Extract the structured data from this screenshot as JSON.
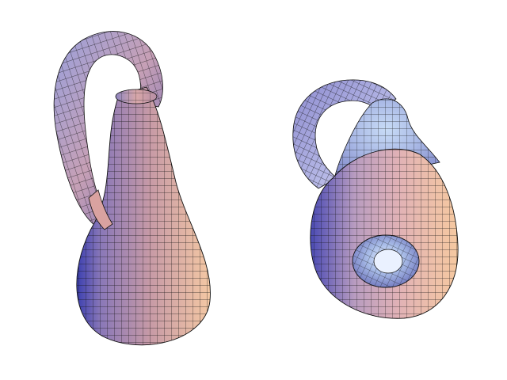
{
  "scene": {
    "background": "#ffffff",
    "mesh_color": "#111111",
    "shading": {
      "cool": "#5a62c4",
      "rose": "#c79aa6",
      "warm": "#f2c3a2",
      "sky": "#a8c4ee",
      "pale": "#eef0f4"
    },
    "figures": [
      {
        "name": "klein-bottle-upright",
        "view": "side"
      },
      {
        "name": "klein-bottle-tilted",
        "view": "three-quarter"
      }
    ]
  }
}
